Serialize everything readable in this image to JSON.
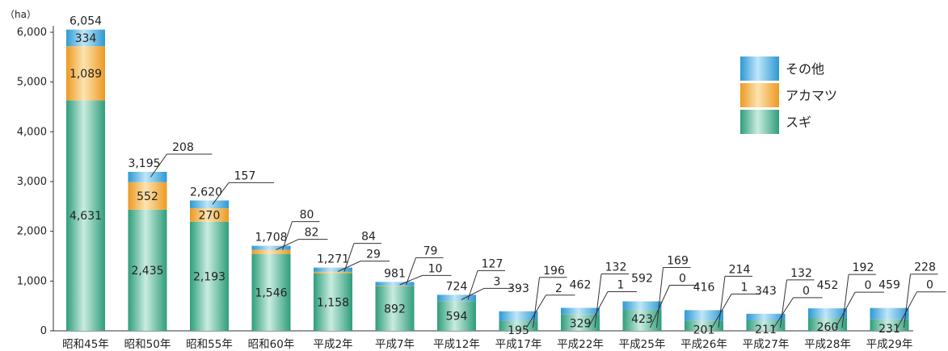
{
  "chart_data": {
    "type": "bar",
    "stacked": true,
    "unit_label": "（ha）",
    "ylim": [
      0,
      6000
    ],
    "yticks": [
      "0",
      "1,000",
      "2,000",
      "3,000",
      "4,000",
      "5,000",
      "6,000"
    ],
    "categories": [
      "昭和45年",
      "昭和50年",
      "昭和55年",
      "昭和60年",
      "平成2年",
      "平成7年",
      "平成12年",
      "平成17年",
      "平成22年",
      "平成25年",
      "平成26年",
      "平成27年",
      "平成28年",
      "平成29年"
    ],
    "series": [
      {
        "name": "スギ",
        "color": "#3fae8c",
        "values": [
          4631,
          2435,
          2193,
          1546,
          1158,
          892,
          594,
          195,
          329,
          423,
          201,
          211,
          260,
          231
        ]
      },
      {
        "name": "アカマツ",
        "color": "#f0a632",
        "values": [
          1089,
          552,
          270,
          82,
          29,
          10,
          3,
          2,
          1,
          0,
          1,
          0,
          0,
          0
        ]
      },
      {
        "name": "その他",
        "color": "#3aa8dc",
        "values": [
          334,
          208,
          157,
          80,
          84,
          79,
          127,
          196,
          132,
          169,
          214,
          132,
          192,
          228
        ]
      }
    ],
    "total_labels": [
      "6,054",
      "3,195",
      "2,620",
      "1,708",
      "1,271",
      "981",
      "724",
      "393",
      "462",
      "592",
      "416",
      "343",
      "452",
      "459"
    ],
    "sugi_labels": [
      "4,631",
      "2,435",
      "2,193",
      "1,546",
      "1,158",
      "892",
      "594",
      "195",
      "329",
      "423",
      "201",
      "211",
      "260",
      "231"
    ],
    "akamatsu_labels": [
      "1,089",
      "552",
      "270",
      "82",
      "29",
      "10",
      "3",
      "2",
      "1",
      "0",
      "1",
      "0",
      "0",
      "0"
    ],
    "sonota_labels": [
      "334",
      "208",
      "157",
      "80",
      "84",
      "79",
      "127",
      "196",
      "132",
      "169",
      "214",
      "132",
      "192",
      "228"
    ],
    "legend_position": "top-right",
    "legend": [
      "その他",
      "アカマツ",
      "スギ"
    ],
    "grid": false
  }
}
